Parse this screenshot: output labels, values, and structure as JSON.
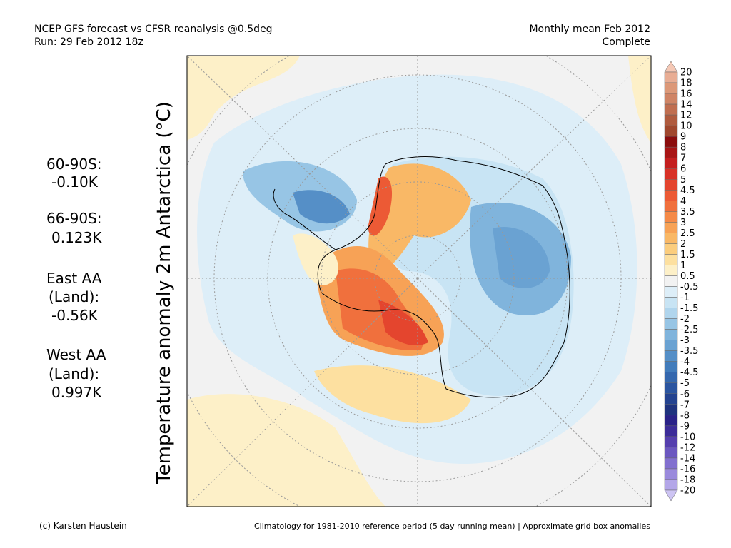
{
  "header": {
    "left": [
      "NCEP GFS forecast vs CFSR reanalysis @0.5deg",
      "Run: 29 Feb 2012 18z"
    ],
    "right": [
      "Monthly mean Feb 2012",
      "Complete"
    ]
  },
  "stats": [
    "60-90S:",
    "-0.10K",
    "66-90S:",
    "0.123K",
    "East AA",
    "(Land):",
    "-0.56K",
    "West AA",
    "(Land):",
    "0.997K"
  ],
  "axis_label": "Temperature anomaly 2m Antarctica (°C)",
  "colorbar": {
    "labels": [
      20,
      18,
      16,
      14,
      12,
      10,
      9,
      8,
      7,
      6,
      5,
      4.5,
      4,
      3.5,
      3,
      2.5,
      2,
      1.5,
      1,
      0.5,
      -0.5,
      -1,
      -1.5,
      -2,
      -2.5,
      -3,
      -3.5,
      -4,
      -4.5,
      -5,
      -6,
      -7,
      -8,
      -9,
      -10,
      -12,
      -14,
      -16,
      -18,
      -20
    ],
    "colors": [
      "#f5c8b5",
      "#e8ad94",
      "#dc9878",
      "#cf8465",
      "#c06e50",
      "#b05b3e",
      "#a0482e",
      "#8b0d0d",
      "#a81515",
      "#c41f1f",
      "#d83127",
      "#e4452e",
      "#ec5a35",
      "#f0703d",
      "#f58a48",
      "#f7a256",
      "#f9b866",
      "#fbcd7e",
      "#fde0a0",
      "#fdf0c8",
      "#f2f2f2",
      "#ddeef8",
      "#c8e4f4",
      "#b0d5ed",
      "#97c5e5",
      "#80b4dc",
      "#6aa2d2",
      "#558fc7",
      "#427cbb",
      "#3568ae",
      "#2b55a0",
      "#244390",
      "#1f337e",
      "#2a2288",
      "#3c2c99",
      "#553fae",
      "#6b57c0",
      "#8270cf",
      "#9a8adc",
      "#b3a6e8",
      "#cdc4f3"
    ]
  },
  "footer": {
    "left": "(c) Karsten Haustein",
    "right": "Climatology for 1981-2010 reference period (5 day running mean) | Approximate grid box anomalies"
  }
}
